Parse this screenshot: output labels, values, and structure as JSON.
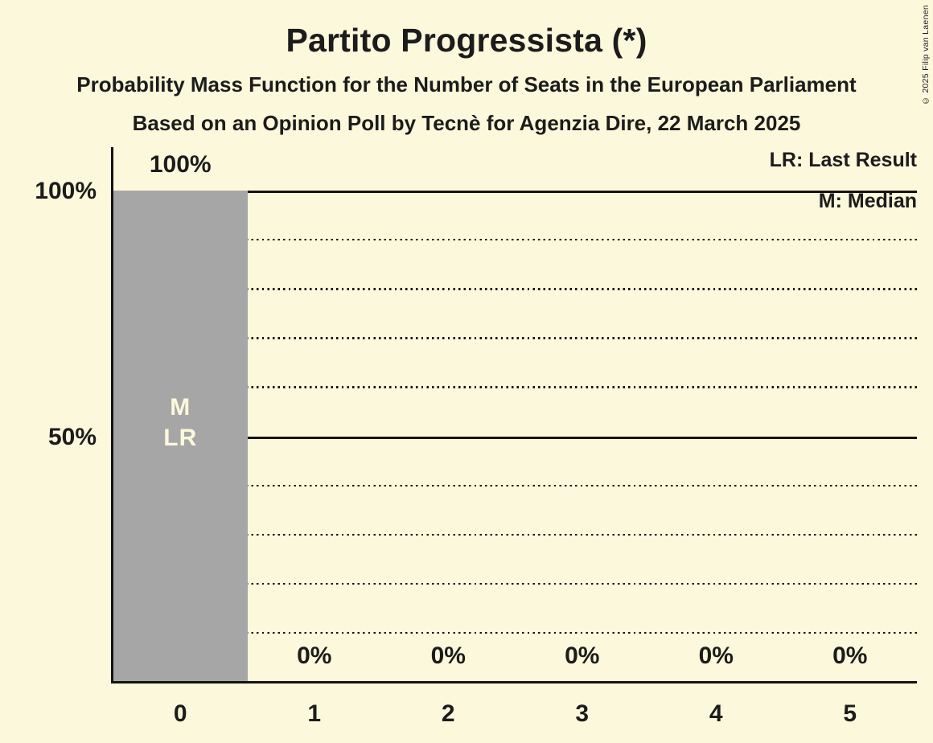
{
  "title": "Partito Progressista (*)",
  "subtitles": [
    "Probability Mass Function for the Number of Seats in the European Parliament",
    "Based on an Opinion Poll by Tecnè for Agenzia Dire, 22 March 2025"
  ],
  "copyright": "© 2025 Filip van Laenen",
  "legend": {
    "last_result": "LR: Last Result",
    "median": "M: Median"
  },
  "colors": {
    "background": "#fcf8db",
    "bar": "#a6a6a6",
    "text": "#1c1c1c",
    "bar_marker_text": "#fcf8db",
    "grid": "#141414"
  },
  "chart_data": {
    "type": "bar",
    "title": "Partito Progressista (*)",
    "categories": [
      "0",
      "1",
      "2",
      "3",
      "4",
      "5"
    ],
    "values": [
      100,
      0,
      0,
      0,
      0,
      0
    ],
    "value_labels": [
      "100%",
      "0%",
      "0%",
      "0%",
      "0%",
      "0%"
    ],
    "xlabel": "",
    "ylabel": "",
    "ylim": [
      0,
      100
    ],
    "yticks": [
      {
        "value": 100,
        "label": "100%"
      },
      {
        "value": 50,
        "label": "50%"
      }
    ],
    "solid_gridlines_pct": [
      100,
      50
    ],
    "dotted_gridlines_pct": [
      90,
      80,
      70,
      60,
      40,
      30,
      20,
      10
    ],
    "grid": "horizontal; dotted every 10%, solid at 50% and 100%",
    "legend_position": "top-right",
    "bar_annotations": [
      {
        "category_index": 0,
        "lines": [
          "M",
          "LR"
        ]
      }
    ]
  }
}
